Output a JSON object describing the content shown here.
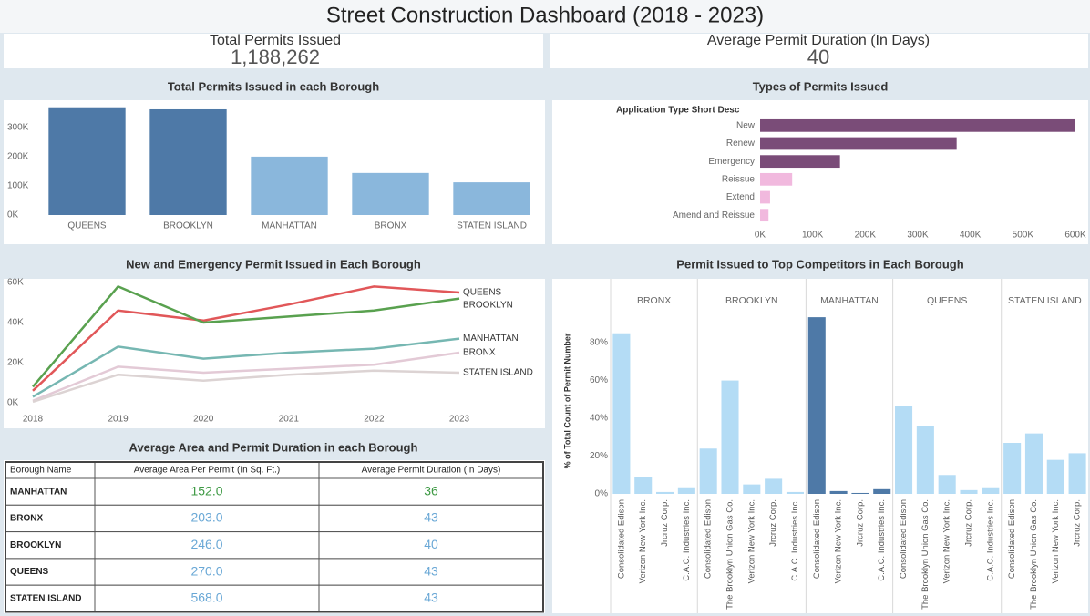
{
  "title": "Street Construction Dashboard (2018 - 2023)",
  "kpis": [
    {
      "label": "Total Permits Issued",
      "value": "1,188,262"
    },
    {
      "label": "Average Permit Duration (In Days)",
      "value": "40"
    }
  ],
  "chart_data": [
    {
      "type": "bar",
      "title": "Total Permits Issued in each Borough",
      "categories": [
        "QUEENS",
        "BROOKLYN",
        "MANHATTAN",
        "BRONX",
        "STATEN ISLAND"
      ],
      "values": [
        369000,
        362000,
        200000,
        144000,
        112000
      ],
      "colors": [
        "#4e79a7",
        "#4e79a7",
        "#8ab7dc",
        "#8ab7dc",
        "#8ab7dc"
      ],
      "ylim": [
        0,
        390000
      ],
      "yticks": [
        {
          "value": 0,
          "label": "0K"
        },
        {
          "value": 100000,
          "label": "100K"
        },
        {
          "value": 200000,
          "label": "200K"
        },
        {
          "value": 300000,
          "label": "300K"
        }
      ]
    },
    {
      "type": "hbar",
      "title": "Types of Permits Issued",
      "y_label": "Application Type Short Desc",
      "categories": [
        "New",
        "Renew",
        "Emergency",
        "Reissue",
        "Extend",
        "Amend and Reissue"
      ],
      "values": [
        600000,
        374000,
        152000,
        61000,
        19000,
        16000
      ],
      "colors": [
        "#7a4c78",
        "#7a4c78",
        "#7a4c78",
        "#f1b9de",
        "#f1b9de",
        "#f1b9de"
      ],
      "xlim": [
        0,
        600000
      ],
      "xticks": [
        {
          "value": 0,
          "label": "0K"
        },
        {
          "value": 100000,
          "label": "100K"
        },
        {
          "value": 200000,
          "label": "200K"
        },
        {
          "value": 300000,
          "label": "300K"
        },
        {
          "value": 400000,
          "label": "400K"
        },
        {
          "value": 500000,
          "label": "500K"
        },
        {
          "value": 600000,
          "label": "600K"
        }
      ]
    },
    {
      "type": "line",
      "title": "New and Emergency Permit Issued in Each Borough",
      "categories": [
        "2018",
        "2019",
        "2020",
        "2021",
        "2022",
        "2023"
      ],
      "series": [
        {
          "name": "QUEENS",
          "color": "#e15759",
          "values": [
            6000,
            46000,
            41000,
            49000,
            58000,
            55000
          ]
        },
        {
          "name": "BROOKLYN",
          "color": "#59a14f",
          "values": [
            8000,
            58000,
            40000,
            43000,
            46000,
            52000
          ]
        },
        {
          "name": "MANHATTAN",
          "color": "#76b7b2",
          "values": [
            3000,
            28000,
            22000,
            25000,
            27000,
            32000
          ]
        },
        {
          "name": "BRONX",
          "color": "#e3cad6",
          "values": [
            1000,
            18000,
            15000,
            17000,
            19000,
            25000
          ]
        },
        {
          "name": "STATEN ISLAND",
          "color": "#dcd3d3",
          "values": [
            500,
            14000,
            11000,
            14000,
            16000,
            15000
          ]
        }
      ],
      "ylim": [
        0,
        62000
      ],
      "yticks": [
        {
          "value": 0,
          "label": "0K"
        },
        {
          "value": 20000,
          "label": "20K"
        },
        {
          "value": 40000,
          "label": "40K"
        },
        {
          "value": 60000,
          "label": "60K"
        }
      ]
    },
    {
      "type": "facet",
      "title": "Permit Issued to Top Competitors in Each Borough",
      "y_label": "% of Total Count of Permit Number",
      "facets": [
        {
          "name": "BRONX",
          "color": "#b4dcf5",
          "categories": [
            "Consolidated Edison",
            "Verizon New York Inc.",
            "Jrcruz Corp.",
            "C.A.C. Industries Inc."
          ],
          "values": [
            85,
            9,
            1,
            3.5
          ]
        },
        {
          "name": "BROOKLYN",
          "color": "#b4dcf5",
          "categories": [
            "Consolidated Edison",
            "The Brooklyn Union Gas Co.",
            "Verizon New York Inc.",
            "Jrcruz Corp.",
            "C.A.C. Industries Inc."
          ],
          "values": [
            24,
            60,
            5,
            8,
            1
          ]
        },
        {
          "name": "MANHATTAN",
          "color": "#4e79a7",
          "categories": [
            "Consolidated Edison",
            "Verizon New York Inc.",
            "Jrcruz Corp.",
            "C.A.C. Industries Inc."
          ],
          "values": [
            93.5,
            1.5,
            0.5,
            2.5
          ]
        },
        {
          "name": "QUEENS",
          "color": "#b4dcf5",
          "categories": [
            "Consolidated Edison",
            "The Brooklyn Union Gas Co.",
            "Verizon New York Inc.",
            "Jrcruz Corp.",
            "C.A.C. Industries Inc."
          ],
          "values": [
            46.5,
            36,
            10,
            2,
            3.5
          ]
        },
        {
          "name": "STATEN ISLAND",
          "color": "#b4dcf5",
          "categories": [
            "Consolidated Edison",
            "The Brooklyn Union Gas Co.",
            "Verizon New York Inc.",
            "Jrcruz Corp."
          ],
          "values": [
            27,
            32,
            18,
            21.5
          ]
        }
      ],
      "ylim": [
        0,
        95
      ],
      "yticks": [
        {
          "value": 0,
          "label": "0%"
        },
        {
          "value": 20,
          "label": "20%"
        },
        {
          "value": 40,
          "label": "40%"
        },
        {
          "value": 60,
          "label": "60%"
        },
        {
          "value": 80,
          "label": "80%"
        }
      ]
    }
  ],
  "table": {
    "title": "Average Area and Permit Duration in each Borough",
    "columns": [
      "Borough Name",
      "Average Area Per Permit (In Sq. Ft.)",
      "Average Permit Duration (In Days)"
    ],
    "rows": [
      [
        "MANHATTAN",
        "152.0",
        "36"
      ],
      [
        "BRONX",
        "203.0",
        "43"
      ],
      [
        "BROOKLYN",
        "246.0",
        "40"
      ],
      [
        "QUEENS",
        "270.0",
        "43"
      ],
      [
        "STATEN ISLAND",
        "568.0",
        "43"
      ]
    ],
    "colors": [
      "#3f9a45",
      "#6aa8d6",
      "#6aa8d6",
      "#6aa8d6",
      "#6aa8d6"
    ]
  }
}
